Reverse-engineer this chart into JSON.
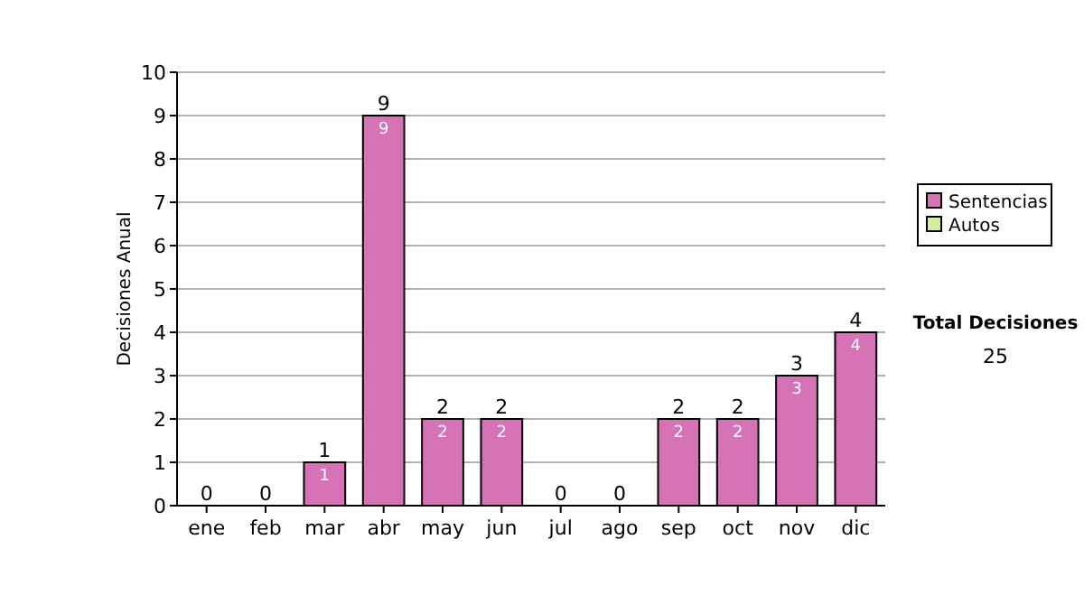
{
  "chart_data": {
    "type": "bar",
    "ylabel": "Decisiones Anual",
    "categories": [
      "ene",
      "feb",
      "mar",
      "abr",
      "may",
      "jun",
      "jul",
      "ago",
      "sep",
      "oct",
      "nov",
      "dic"
    ],
    "series": [
      {
        "name": "Sentencias",
        "color": "#d672b6",
        "values": [
          0,
          0,
          1,
          9,
          2,
          2,
          0,
          0,
          2,
          2,
          3,
          4
        ],
        "value_labels": [
          null,
          null,
          "1",
          "9",
          "2",
          "2",
          null,
          null,
          "2",
          "2",
          "3",
          "4"
        ]
      },
      {
        "name": "Autos",
        "color": "#d4ee9c",
        "values": [
          0,
          0,
          0,
          0,
          0,
          0,
          0,
          0,
          0,
          0,
          0,
          0
        ]
      }
    ],
    "stacked": true,
    "totals": [
      "0",
      "0",
      "1",
      "9",
      "2",
      "2",
      "0",
      "0",
      "2",
      "2",
      "3",
      "4"
    ],
    "ylim": [
      0,
      10
    ],
    "yticks": [
      0,
      1,
      2,
      3,
      4,
      5,
      6,
      7,
      8,
      9,
      10
    ],
    "grid": "y",
    "legend": "right",
    "annotations": [
      "Total Decisiones",
      "25"
    ]
  }
}
